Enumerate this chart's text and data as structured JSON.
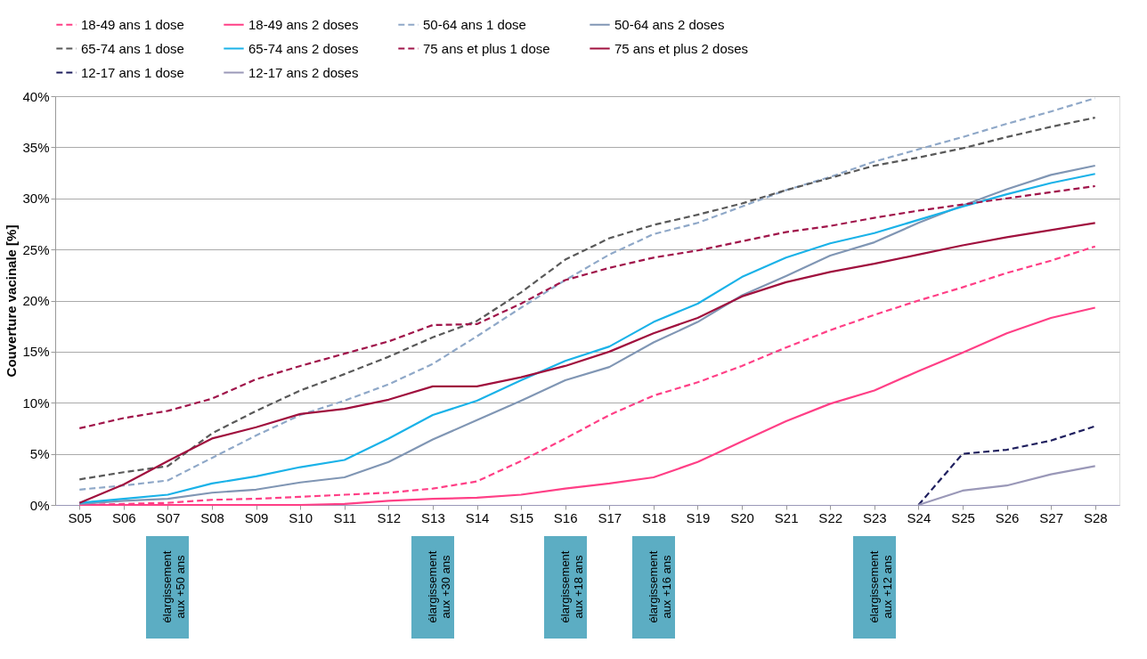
{
  "chart_data": {
    "type": "line",
    "ylabel": "Couverture vacinale [%]",
    "categories": [
      "S05",
      "S06",
      "S07",
      "S08",
      "S09",
      "S10",
      "S11",
      "S12",
      "S13",
      "S14",
      "S15",
      "S16",
      "S17",
      "S18",
      "S19",
      "S20",
      "S21",
      "S22",
      "S23",
      "S24",
      "S25",
      "S26",
      "S27",
      "S28"
    ],
    "ylim": [
      0,
      40
    ],
    "yticks": [
      {
        "value": 0,
        "label": "0%"
      },
      {
        "value": 5,
        "label": "5%"
      },
      {
        "value": 10,
        "label": "10%"
      },
      {
        "value": 15,
        "label": "15%"
      },
      {
        "value": 20,
        "label": "20%"
      },
      {
        "value": 25,
        "label": "25%"
      },
      {
        "value": 30,
        "label": "30%"
      },
      {
        "value": 35,
        "label": "35%"
      },
      {
        "value": 40,
        "label": "40%"
      }
    ],
    "grid": "y",
    "legend": "top",
    "marker": "none",
    "series": [
      {
        "name": "18-49 ans 1 dose",
        "color": "#ff3f86",
        "line_style": "dashed",
        "values": [
          0,
          0.1,
          0.2,
          0.5,
          0.6,
          0.8,
          1.0,
          1.2,
          1.6,
          2.3,
          4.3,
          6.5,
          8.8,
          10.7,
          12.0,
          13.6,
          15.4,
          17.1,
          18.6,
          20.0,
          21.3,
          22.7,
          23.9,
          25.3
        ]
      },
      {
        "name": "18-49 ans 2 doses",
        "color": "#ff3f86",
        "line_style": "solid",
        "values": [
          0,
          0,
          0,
          0,
          0,
          0,
          0.1,
          0.4,
          0.6,
          0.7,
          1.0,
          1.6,
          2.1,
          2.7,
          4.2,
          6.2,
          8.2,
          9.9,
          11.2,
          13.1,
          14.9,
          16.8,
          18.3,
          19.3
        ]
      },
      {
        "name": "50-64 ans 1 dose",
        "color": "#8fa8c8",
        "line_style": "dashed",
        "values": [
          1.5,
          1.9,
          2.4,
          4.6,
          6.8,
          8.8,
          10.2,
          11.8,
          13.8,
          16.5,
          19.3,
          22.0,
          24.5,
          26.5,
          27.6,
          29.2,
          30.8,
          32.1,
          33.6,
          34.8,
          36.0,
          37.3,
          38.5,
          39.8
        ]
      },
      {
        "name": "50-64 ans 2 doses",
        "color": "#8096b4",
        "line_style": "solid",
        "values": [
          0.1,
          0.4,
          0.6,
          1.2,
          1.5,
          2.2,
          2.7,
          4.2,
          6.4,
          8.3,
          10.2,
          12.2,
          13.5,
          15.9,
          17.9,
          20.5,
          22.4,
          24.4,
          25.7,
          27.6,
          29.3,
          30.9,
          32.3,
          33.2
        ]
      },
      {
        "name": "65-74 ans 1 dose",
        "color": "#595959",
        "line_style": "dashed",
        "values": [
          2.5,
          3.2,
          3.8,
          7.0,
          9.2,
          11.2,
          12.8,
          14.5,
          16.4,
          18.0,
          20.8,
          24.0,
          26.1,
          27.4,
          28.4,
          29.5,
          30.8,
          32.0,
          33.2,
          34.0,
          34.9,
          36.0,
          37.0,
          37.9
        ]
      },
      {
        "name": "65-74 ans 2 doses",
        "color": "#1ab2e8",
        "line_style": "solid",
        "values": [
          0.2,
          0.6,
          1.0,
          2.1,
          2.8,
          3.7,
          4.4,
          6.5,
          8.8,
          10.2,
          12.2,
          14.1,
          15.5,
          17.9,
          19.7,
          22.3,
          24.2,
          25.6,
          26.6,
          27.9,
          29.2,
          30.4,
          31.5,
          32.4
        ]
      },
      {
        "name": "75 ans et plus 1 dose",
        "color": "#a0144a",
        "line_style": "dashed",
        "values": [
          7.5,
          8.5,
          9.2,
          10.4,
          12.3,
          13.6,
          14.8,
          16.0,
          17.6,
          17.7,
          19.7,
          22.0,
          23.2,
          24.2,
          24.9,
          25.8,
          26.7,
          27.3,
          28.1,
          28.8,
          29.4,
          30.0,
          30.6,
          31.2
        ]
      },
      {
        "name": "75 ans et plus 2 doses",
        "color": "#a0103e",
        "line_style": "solid",
        "values": [
          0.2,
          2.0,
          4.3,
          6.5,
          7.6,
          8.9,
          9.4,
          10.3,
          11.6,
          11.6,
          12.5,
          13.6,
          15.0,
          16.8,
          18.3,
          20.4,
          21.8,
          22.8,
          23.6,
          24.5,
          25.4,
          26.2,
          26.9,
          27.6
        ]
      },
      {
        "name": "12-17 ans 1 dose",
        "color": "#1f1f5e",
        "line_style": "dashed",
        "values": [
          null,
          null,
          null,
          null,
          null,
          null,
          null,
          null,
          null,
          null,
          null,
          null,
          null,
          null,
          null,
          null,
          null,
          null,
          null,
          0,
          5.0,
          5.4,
          6.3,
          7.7
        ]
      },
      {
        "name": "12-17 ans 2 doses",
        "color": "#9a98b8",
        "line_style": "solid",
        "values": [
          null,
          null,
          null,
          null,
          null,
          null,
          null,
          null,
          null,
          null,
          null,
          null,
          null,
          null,
          null,
          null,
          null,
          null,
          null,
          0,
          1.4,
          1.9,
          3.0,
          3.8
        ]
      }
    ],
    "annotations": [
      "élargissement\naux +50 ans",
      "élargissement\naux +30 ans",
      "élargissement\naux +18 ans",
      "élargissement\naux +16 ans",
      "élargissement\naux +12 ans"
    ]
  }
}
